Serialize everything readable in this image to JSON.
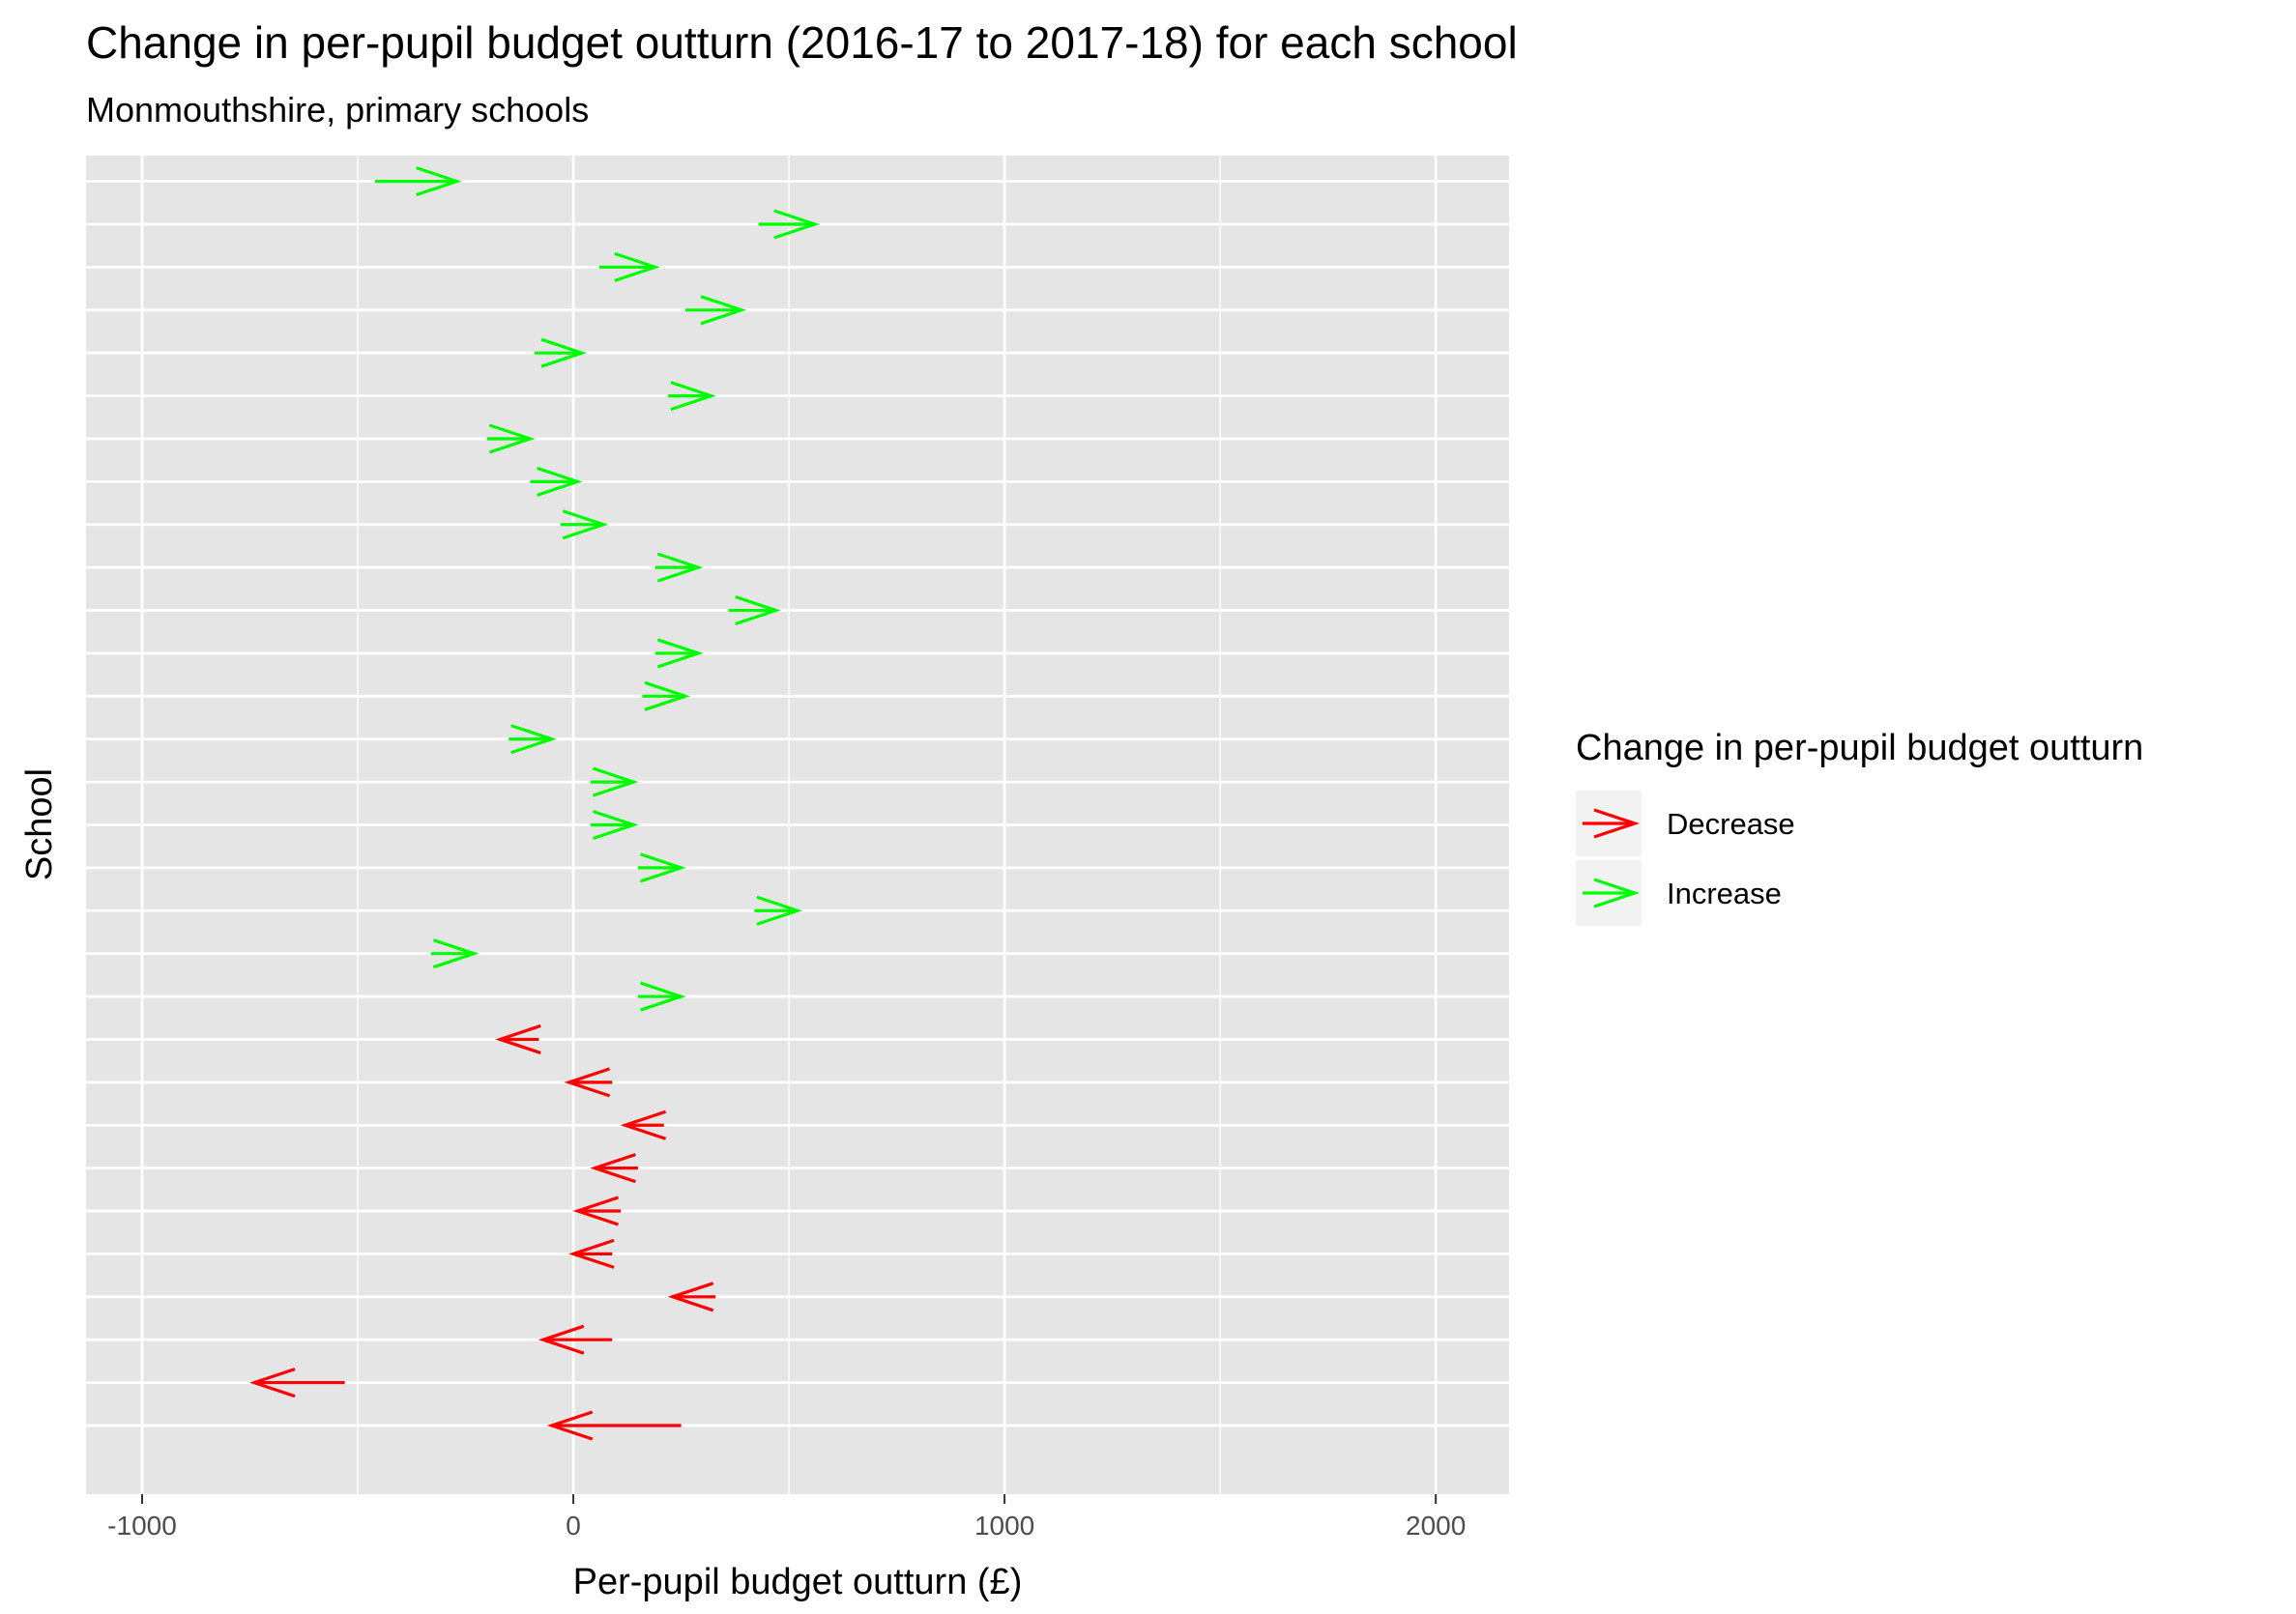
{
  "chart_data": {
    "type": "arrow",
    "title": "Change in per-pupil budget outturn (2016-17 to 2017-18) for each school",
    "subtitle": "Monmouthshire, primary schools",
    "xlabel": "Per-pupil budget outturn (£)",
    "ylabel": "School",
    "xlim": [
      -1130,
      2170
    ],
    "x_ticks": [
      -1000,
      0,
      1000,
      2000
    ],
    "x_tick_labels": [
      "-1000",
      "0",
      "1000",
      "2000"
    ],
    "y_tick_labels_shown": false,
    "grid": true,
    "legend": {
      "title": "Change in per-pupil budget outturn",
      "position": "right",
      "items": [
        {
          "label": "Decrease",
          "color": "#ff0000"
        },
        {
          "label": "Increase",
          "color": "#00ff00"
        }
      ]
    },
    "colors": {
      "Decrease": "#ff0000",
      "Increase": "#00ff00",
      "panel": "#e5e5e5",
      "grid": "#ffffff"
    },
    "arrows_top_to_bottom": [
      {
        "from": -460,
        "to": -270,
        "change": "Increase"
      },
      {
        "from": 430,
        "to": 560,
        "change": "Increase"
      },
      {
        "from": 60,
        "to": 190,
        "change": "Increase"
      },
      {
        "from": 260,
        "to": 390,
        "change": "Increase"
      },
      {
        "from": -90,
        "to": 20,
        "change": "Increase"
      },
      {
        "from": 220,
        "to": 320,
        "change": "Increase"
      },
      {
        "from": -200,
        "to": -100,
        "change": "Increase"
      },
      {
        "from": -100,
        "to": 10,
        "change": "Increase"
      },
      {
        "from": -30,
        "to": 70,
        "change": "Increase"
      },
      {
        "from": 190,
        "to": 290,
        "change": "Increase"
      },
      {
        "from": 360,
        "to": 470,
        "change": "Increase"
      },
      {
        "from": 190,
        "to": 290,
        "change": "Increase"
      },
      {
        "from": 160,
        "to": 260,
        "change": "Increase"
      },
      {
        "from": -150,
        "to": -50,
        "change": "Increase"
      },
      {
        "from": 40,
        "to": 140,
        "change": "Increase"
      },
      {
        "from": 40,
        "to": 140,
        "change": "Increase"
      },
      {
        "from": 150,
        "to": 250,
        "change": "Increase"
      },
      {
        "from": 420,
        "to": 520,
        "change": "Increase"
      },
      {
        "from": -330,
        "to": -230,
        "change": "Increase"
      },
      {
        "from": 150,
        "to": 250,
        "change": "Increase"
      },
      {
        "from": -80,
        "to": -170,
        "change": "Decrease"
      },
      {
        "from": 90,
        "to": -10,
        "change": "Decrease"
      },
      {
        "from": 210,
        "to": 120,
        "change": "Decrease"
      },
      {
        "from": 150,
        "to": 50,
        "change": "Decrease"
      },
      {
        "from": 110,
        "to": 10,
        "change": "Decrease"
      },
      {
        "from": 90,
        "to": 0,
        "change": "Decrease"
      },
      {
        "from": 330,
        "to": 230,
        "change": "Decrease"
      },
      {
        "from": 90,
        "to": -70,
        "change": "Decrease"
      },
      {
        "from": -530,
        "to": -740,
        "change": "Decrease"
      },
      {
        "from": 250,
        "to": -50,
        "change": "Decrease"
      }
    ]
  }
}
